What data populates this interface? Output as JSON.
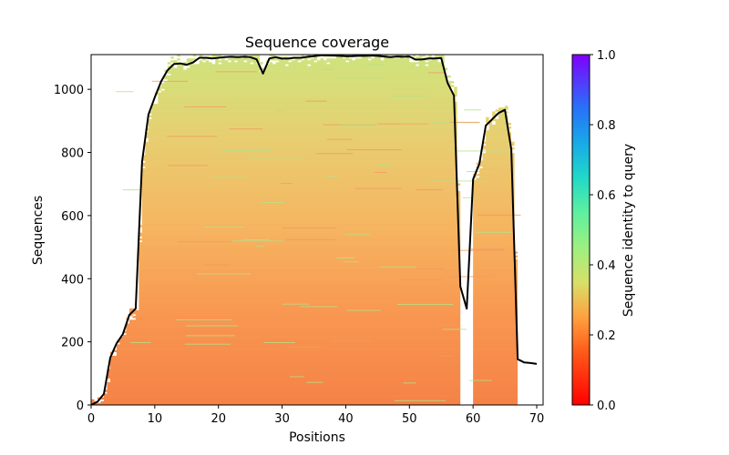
{
  "chart_data": {
    "type": "heatmap",
    "title": "Sequence coverage",
    "xlabel": "Positions",
    "ylabel": "Sequences",
    "xlim": [
      0,
      71
    ],
    "ylim": [
      0,
      1110
    ],
    "xticks": [
      0,
      10,
      20,
      30,
      40,
      50,
      60,
      70
    ],
    "yticks": [
      0,
      200,
      400,
      600,
      800,
      1000
    ],
    "colorbar": {
      "label": "Sequence identity to query",
      "range": [
        0.0,
        1.0
      ],
      "ticks": [
        "0.0",
        "0.2",
        "0.4",
        "0.6",
        "0.8",
        "1.0"
      ],
      "colormap": "rainbow"
    },
    "gaps": [
      [
        58,
        60
      ],
      [
        67,
        71
      ]
    ],
    "coverage_line": {
      "name": "coverage",
      "color": "#000000",
      "x": [
        0,
        1,
        2,
        3,
        4,
        5,
        6,
        7,
        8,
        9,
        10,
        11,
        12,
        13,
        14,
        15,
        16,
        17,
        18,
        19,
        20,
        21,
        22,
        23,
        24,
        25,
        26,
        27,
        28,
        29,
        30,
        31,
        32,
        33,
        34,
        35,
        36,
        37,
        38,
        39,
        40,
        41,
        42,
        43,
        44,
        45,
        46,
        47,
        48,
        49,
        50,
        51,
        52,
        53,
        54,
        55,
        56,
        57,
        58,
        59,
        60,
        61,
        62,
        63,
        64,
        65,
        66,
        67,
        68,
        69,
        70
      ],
      "y": [
        0,
        10,
        35,
        150,
        195,
        225,
        285,
        305,
        770,
        920,
        975,
        1025,
        1060,
        1080,
        1082,
        1078,
        1085,
        1100,
        1100,
        1098,
        1100,
        1102,
        1103,
        1102,
        1103,
        1102,
        1095,
        1050,
        1098,
        1102,
        1097,
        1098,
        1100,
        1100,
        1103,
        1105,
        1108,
        1108,
        1107,
        1106,
        1105,
        1105,
        1106,
        1106,
        1107,
        1106,
        1104,
        1102,
        1104,
        1103,
        1104,
        1094,
        1095,
        1098,
        1098,
        1099,
        1020,
        980,
        375,
        305,
        715,
        765,
        885,
        905,
        925,
        935,
        810,
        145,
        135,
        133,
        130
      ]
    }
  }
}
